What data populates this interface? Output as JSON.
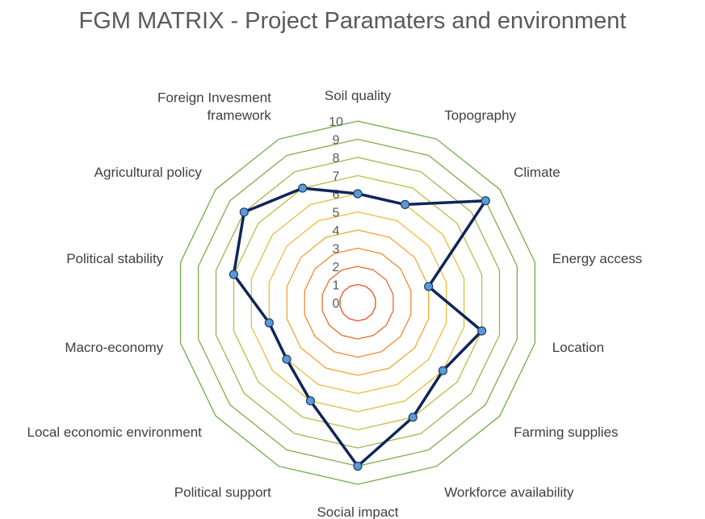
{
  "chart_data": {
    "type": "radar",
    "title": "FGM MATRIX - Project Paramaters and environment",
    "categories": [
      "Soil quality",
      "Topography",
      "Climate",
      "Energy access",
      "Location",
      "Farming supplies",
      "Workforce availability",
      "Social impact",
      "Political support",
      "Local economic environment",
      "Macro-economy",
      "Political stability",
      "Agricultural policy",
      "Foreign Invesment framework"
    ],
    "category_label_lines": [
      [
        "Soil quality"
      ],
      [
        "Topography"
      ],
      [
        "Climate"
      ],
      [
        "Energy access"
      ],
      [
        "Location"
      ],
      [
        "Farming supplies"
      ],
      [
        "Workforce availability"
      ],
      [
        "Social impact"
      ],
      [
        "Political support"
      ],
      [
        "Local economic environment"
      ],
      [
        "Macro-economy"
      ],
      [
        "Political stability"
      ],
      [
        "Agricultural policy"
      ],
      [
        "Foreign Invesment",
        "framework"
      ]
    ],
    "series": [
      {
        "values": [
          6,
          6,
          9,
          4,
          7,
          6,
          7,
          9,
          6,
          5,
          5,
          7,
          8,
          7
        ]
      }
    ],
    "rlim": [
      0,
      10
    ],
    "ticks": [
      0,
      1,
      2,
      3,
      4,
      5,
      6,
      7,
      8,
      9,
      10
    ],
    "ring_colors": [
      "#e1372b",
      "#e64d26",
      "#eb6a27",
      "#ef8a2a",
      "#f1a530",
      "#f0bc36",
      "#ddc03d",
      "#bfbb44",
      "#9fb44a",
      "#82ac4e",
      "#70ad47"
    ],
    "series_color": "#0f2559",
    "marker_color": "#5b9bd5"
  }
}
